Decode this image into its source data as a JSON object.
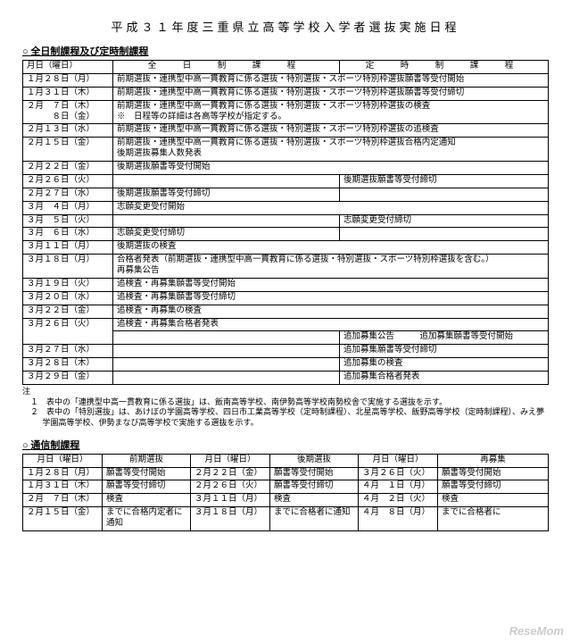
{
  "title": "平成３１年度三重県立高等学校入学者選抜実施日程",
  "section1": {
    "heading": "全日制課程及び定時制課程",
    "header_date": "月日（曜日）",
    "header_full": "全　日　制　課　程",
    "header_part": "定　時　制　課　程",
    "rows": [
      {
        "d": "１月２８日（月）",
        "full": "前期選抜・連携型中高一貫教育に係る選抜・特別選抜・スポーツ特別枠選抜願書等受付開始",
        "span": true
      },
      {
        "d": "１月３１日（木）",
        "full": "前期選抜・連携型中高一貫教育に係る選抜・特別選抜・スポーツ特別枠選抜願書等受付締切",
        "span": true
      },
      {
        "d": "２月　７日（木）\n　　　８日（金）",
        "full": "前期選抜・連携型中高一貫教育に係る選抜・特別選抜・スポーツ特別枠選抜の検査\n※　日程等の詳細は各高等学校が指定する。",
        "span": true
      },
      {
        "d": "２月１３日（水）",
        "full": "前期選抜・連携型中高一貫教育に係る選抜・特別選抜・スポーツ特別枠選抜の追検査",
        "span": true
      },
      {
        "d": "２月１５日（金）",
        "full": "前期選抜・連携型中高一貫教育に係る選抜・特別選抜・スポーツ特別枠選抜合格内定通知\n後期選抜募集人数発表",
        "span": true
      },
      {
        "d": "２月２２日（金）",
        "full": "後期選抜願書等受付開始",
        "span": true
      },
      {
        "d": "２月２６日（火）",
        "full": "",
        "part": "後期選抜願書等受付締切"
      },
      {
        "d": "２月２７日（水）",
        "full": "後期選抜願書等受付締切",
        "part": ""
      },
      {
        "d": "３月　４日（月）",
        "full": "志願変更受付開始",
        "span": true
      },
      {
        "d": "３月　５日（火）",
        "full": "",
        "part": "志願変更受付締切"
      },
      {
        "d": "３月　６日（水）",
        "full": "志願変更受付締切",
        "part": ""
      },
      {
        "d": "３月１１日（月）",
        "full": "後期選抜の検査",
        "span": true
      },
      {
        "d": "３月１８日（月）",
        "full": "合格者発表（前期選抜・連携型中高一貫教育に係る選抜・特別選抜・スポーツ特別枠選抜を含む。）\n再募集公告",
        "span": true
      },
      {
        "d": "３月１９日（火）",
        "full": "追検査・再募集願書等受付開始",
        "span": true
      },
      {
        "d": "３月２０日（水）",
        "full": "追検査・再募集願書等受付締切",
        "span": true
      },
      {
        "d": "３月２２日（金）",
        "full": "追検査・再募集の検査",
        "span": true
      }
    ],
    "row26_date": "３月２６日（火）",
    "row26_top": "追検査・再募集合格者発表",
    "row26_part": "追加募集公告　　　追加募集願書等受付開始",
    "rows2": [
      {
        "d": "３月２７日（水）",
        "full": "",
        "part": "追加募集願書等受付締切"
      },
      {
        "d": "３月２８日（木）",
        "full": "",
        "part": "追加募集の検査"
      },
      {
        "d": "３月２９日（金）",
        "full": "",
        "part": "追加募集合格者発表"
      }
    ],
    "note_head": "注",
    "note1": "１　表中の「連携型中高一貫教育に係る選抜」は、飯南高等学校、南伊勢高等学校南勢校舎で実施する選抜を示す。",
    "note2": "２　表中の「特別選抜」は、あけぼの学園高等学校、四日市工業高等学校（定時制課程）、北星高等学校、飯野高等学校（定時制課程）、みえ夢学園高等学校、伊勢まなび高等学校で実施する選抜を示す。"
  },
  "section2": {
    "heading": "通信制課程",
    "h_date": "月日（曜日）",
    "h_zen": "前期選抜",
    "h_kou": "後期選抜",
    "h_sai": "再募集",
    "rows": [
      {
        "c": [
          "１月２８日（月）",
          "願書等受付開始",
          "２月２２日（金）",
          "願書等受付開始",
          "３月２６日（火）",
          "願書等受付開始"
        ]
      },
      {
        "c": [
          "１月３１日（木）",
          "願書等受付締切",
          "２月２６日（火）",
          "願書等受付締切",
          "４月　１日（月）",
          "願書等受付締切"
        ]
      },
      {
        "c": [
          "２月　７日（木）",
          "検査",
          "３月１１日（月）",
          "検査",
          "４月　２日（火）",
          "検査"
        ]
      },
      {
        "c": [
          "２月１５日（金）",
          "までに合格内定者に通知",
          "３月１８日（月）",
          "までに合格者に通知",
          "４月　８日（月）",
          "までに合格者に"
        ]
      }
    ]
  },
  "watermark": "ReseMom"
}
